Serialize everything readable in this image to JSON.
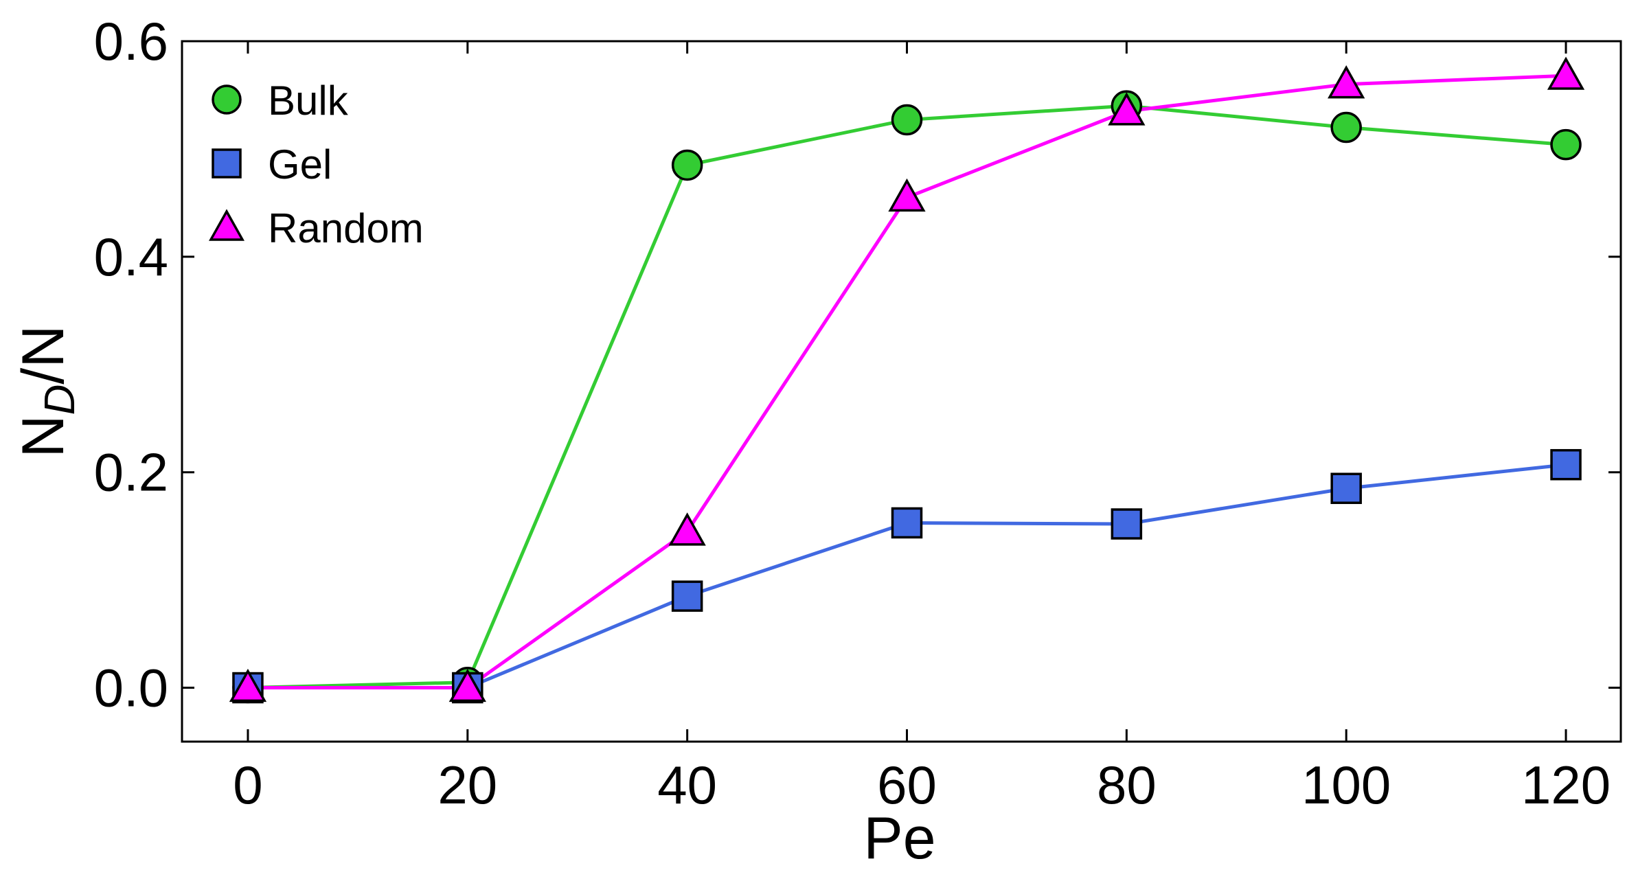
{
  "chart_data": {
    "type": "line",
    "xlabel": "Pe",
    "ylabel_main": "N",
    "ylabel_sub": "D",
    "ylabel_tail": "/N",
    "xlim": [
      -6,
      125
    ],
    "ylim": [
      -0.05,
      0.6
    ],
    "xticks": [
      0,
      20,
      40,
      60,
      80,
      100,
      120
    ],
    "yticks": [
      0.0,
      0.2,
      0.4,
      0.6
    ],
    "ytick_labels": [
      "0.0",
      "0.2",
      "0.4",
      "0.6"
    ],
    "grid": false,
    "legend_position": "top-left",
    "x": [
      0,
      20,
      40,
      60,
      80,
      100,
      120
    ],
    "series": [
      {
        "name": "Bulk",
        "marker": "circle",
        "color": "#33cc33",
        "values": [
          0.0,
          0.005,
          0.485,
          0.527,
          0.54,
          0.52,
          0.504
        ]
      },
      {
        "name": "Gel",
        "marker": "square",
        "color": "#4169e1",
        "values": [
          0.0,
          0.0,
          0.085,
          0.153,
          0.152,
          0.185,
          0.207
        ]
      },
      {
        "name": "Random",
        "marker": "triangle",
        "color": "#ff00ff",
        "values": [
          0.0,
          0.0,
          0.145,
          0.455,
          0.535,
          0.56,
          0.568
        ]
      }
    ]
  }
}
